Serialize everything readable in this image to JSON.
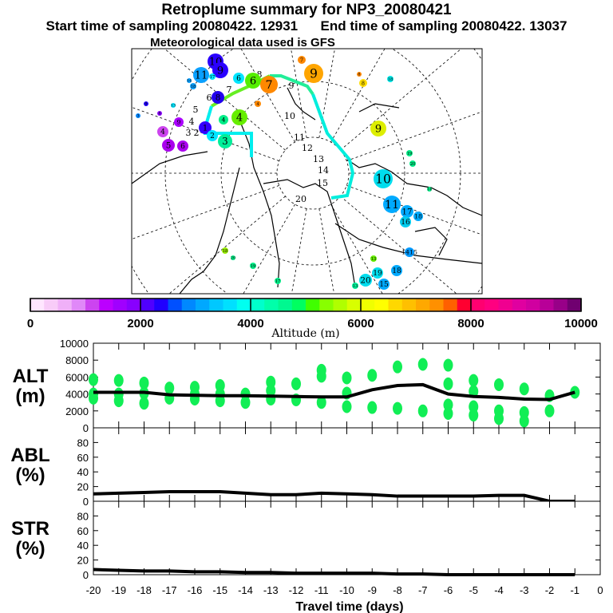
{
  "chart_data": [
    {
      "type": "map",
      "title": "Retroplume summary for NP3_20080421",
      "start_label": "Start time of sampling 20080422. 12931",
      "end_label": "End time of sampling 20080422. 13037",
      "met_label": "Meteorological data used is GFS",
      "trajectory_labels": [
        "20",
        "15",
        "14",
        "13",
        "12",
        "11",
        "10",
        "9",
        "8",
        "7",
        "6",
        "5",
        "4",
        "3",
        "2"
      ],
      "markers": [
        {
          "label": "10",
          "color": "#2a00ff"
        },
        {
          "label": "9",
          "color": "#2a00ff"
        },
        {
          "label": "11",
          "color": "#0aa0ff"
        },
        {
          "label": "17",
          "color": "#00e8ff"
        },
        {
          "label": "14",
          "color": "#0aa0ff"
        },
        {
          "label": "18",
          "color": "#0aa0ff"
        },
        {
          "label": "6",
          "color": "#00e5ff"
        },
        {
          "label": "6",
          "color": "#55ee00"
        },
        {
          "label": "7",
          "color": "#ff8800"
        },
        {
          "label": "7",
          "color": "#ff8800"
        },
        {
          "label": "9",
          "color": "#ffa500"
        },
        {
          "label": "8",
          "color": "#2200ee"
        },
        {
          "label": "4",
          "color": "#ff8800"
        },
        {
          "label": "4",
          "color": "#66ee00"
        },
        {
          "label": "4",
          "color": "#00ee88"
        },
        {
          "label": "1",
          "color": "#3300ff"
        },
        {
          "label": "2",
          "color": "#00e5ff"
        },
        {
          "label": "3",
          "color": "#00ee99"
        },
        {
          "label": "4",
          "color": "#cc44ee"
        },
        {
          "label": "9",
          "color": "#aa00ff"
        },
        {
          "label": "5",
          "color": "#aa00ee"
        },
        {
          "label": "6",
          "color": "#aa00ee"
        },
        {
          "label": "8",
          "color": "#8800ff"
        },
        {
          "label": "9",
          "color": "#2200ff"
        },
        {
          "label": "3",
          "color": "#0088ff"
        },
        {
          "label": "13",
          "color": "#00e5ff"
        },
        {
          "label": "8",
          "color": "#ff8800"
        },
        {
          "label": "8",
          "color": "#ffdd00"
        },
        {
          "label": "18",
          "color": "#00e5e5"
        },
        {
          "label": "9",
          "color": "#ddee00"
        },
        {
          "label": "19",
          "color": "#00ee88"
        },
        {
          "label": "20",
          "color": "#00ee88"
        },
        {
          "label": "10",
          "color": "#00ddee"
        },
        {
          "label": "11",
          "color": "#00aaff"
        },
        {
          "label": "17",
          "color": "#00aaff"
        },
        {
          "label": "16",
          "color": "#00ccee"
        },
        {
          "label": "18",
          "color": "#00aaff"
        },
        {
          "label": "1415",
          "color": "#0099ff"
        },
        {
          "label": "13",
          "color": "#66ee00"
        },
        {
          "label": "19",
          "color": "#00ddee"
        },
        {
          "label": "18",
          "color": "#00aaff"
        },
        {
          "label": "20",
          "color": "#00ddee"
        },
        {
          "label": "15",
          "color": "#00aaff"
        },
        {
          "label": "13",
          "color": "#00ee99"
        },
        {
          "label": "18",
          "color": "#99ee00"
        },
        {
          "label": "20",
          "color": "#00ee88"
        },
        {
          "label": "19",
          "color": "#00ee88"
        },
        {
          "label": "17",
          "color": "#00ee88"
        },
        {
          "label": "14",
          "color": "#00ee88"
        }
      ]
    },
    {
      "type": "colorbar",
      "label": "Altitude (m)",
      "range": [
        0,
        10000
      ],
      "ticks": [
        "0",
        "2000",
        "4000",
        "6000",
        "8000",
        "10000"
      ],
      "colors": [
        "#ffe6ff",
        "#f8ccf8",
        "#f0b0f8",
        "#e088f8",
        "#cc44f0",
        "#bb00ff",
        "#a000ff",
        "#8800ff",
        "#5000ff",
        "#2000ff",
        "#0050ff",
        "#0088ff",
        "#00a8ff",
        "#00c8ff",
        "#00e0ff",
        "#00fff0",
        "#00ffcc",
        "#00ffaa",
        "#00f890",
        "#00ff60",
        "#40ff00",
        "#88ff00",
        "#b0ff00",
        "#d8ff00",
        "#f0ff00",
        "#ffff00",
        "#ffd800",
        "#ffc000",
        "#ffa800",
        "#ff9000",
        "#ff6000",
        "#ff0030",
        "#ff0070",
        "#ff0080",
        "#f00090",
        "#e000a0",
        "#d000a0",
        "#b80098",
        "#980088",
        "#700070"
      ]
    },
    {
      "type": "line",
      "ylabel": "ALT\n(m)",
      "ylabel_lines": [
        "ALT",
        "(m)"
      ],
      "ylim": [
        0,
        10000
      ],
      "yticks": [
        "0",
        "2000",
        "4000",
        "6000",
        "8000",
        "10000"
      ],
      "x": [
        -20,
        -19,
        -18,
        -17,
        -16,
        -15,
        -14,
        -13,
        -12,
        -11,
        -10,
        -9,
        -8,
        -7,
        -6,
        -5,
        -4,
        -3,
        -2,
        -1
      ],
      "values": [
        4200,
        4200,
        4200,
        3900,
        3850,
        3800,
        3800,
        3750,
        3700,
        3650,
        3650,
        4500,
        5000,
        5100,
        4000,
        3700,
        3600,
        3400,
        3350,
        4200
      ],
      "plume_points": [
        [
          -20,
          5700
        ],
        [
          -20,
          4000
        ],
        [
          -20,
          3500
        ],
        [
          -19,
          5600
        ],
        [
          -19,
          4000
        ],
        [
          -19,
          3200
        ],
        [
          -18,
          5300
        ],
        [
          -18,
          4100
        ],
        [
          -18,
          2900
        ],
        [
          -17,
          4700
        ],
        [
          -17,
          3500
        ],
        [
          -16,
          4800
        ],
        [
          -16,
          4000
        ],
        [
          -16,
          3400
        ],
        [
          -15,
          5000
        ],
        [
          -15,
          4000
        ],
        [
          -15,
          3200
        ],
        [
          -14,
          4000
        ],
        [
          -14,
          3000
        ],
        [
          -13,
          5400
        ],
        [
          -13,
          4400
        ],
        [
          -13,
          3400
        ],
        [
          -12,
          5200
        ],
        [
          -12,
          3300
        ],
        [
          -11,
          6800
        ],
        [
          -11,
          6100
        ],
        [
          -11,
          3000
        ],
        [
          -10,
          5900
        ],
        [
          -10,
          4100
        ],
        [
          -10,
          2500
        ],
        [
          -9,
          6200
        ],
        [
          -9,
          2400
        ],
        [
          -8,
          7200
        ],
        [
          -8,
          2300
        ],
        [
          -7,
          7500
        ],
        [
          -7,
          2000
        ],
        [
          -6,
          7400
        ],
        [
          -6,
          5200
        ],
        [
          -6,
          2700
        ],
        [
          -6,
          1700
        ],
        [
          -5,
          5600
        ],
        [
          -5,
          4300
        ],
        [
          -5,
          2500
        ],
        [
          -5,
          1500
        ],
        [
          -4,
          5100
        ],
        [
          -4,
          2000
        ],
        [
          -4,
          1100
        ],
        [
          -3,
          4600
        ],
        [
          -3,
          1800
        ],
        [
          -3,
          800
        ],
        [
          -2,
          3800
        ],
        [
          -2,
          2000
        ],
        [
          -1,
          4200
        ]
      ]
    },
    {
      "type": "line",
      "ylabel_lines": [
        "ABL",
        "(%)"
      ],
      "ylim": [
        0,
        100
      ],
      "yticks": [
        "0",
        "20",
        "40",
        "60",
        "80"
      ],
      "x": [
        -20,
        -19,
        -18,
        -17,
        -16,
        -15,
        -14,
        -13,
        -12,
        -11,
        -10,
        -9,
        -8,
        -7,
        -6,
        -5,
        -4,
        -3,
        -2,
        -1
      ],
      "values": [
        10,
        11,
        12,
        13,
        13,
        13,
        11,
        9,
        9,
        11,
        10,
        9,
        7,
        7,
        7,
        7,
        8,
        8,
        0,
        0
      ]
    },
    {
      "type": "line",
      "ylabel_lines": [
        "STR",
        "(%)"
      ],
      "ylim": [
        0,
        100
      ],
      "yticks": [
        "0",
        "20",
        "40",
        "60",
        "80"
      ],
      "x": [
        -20,
        -19,
        -18,
        -17,
        -16,
        -15,
        -14,
        -13,
        -12,
        -11,
        -10,
        -9,
        -8,
        -7,
        -6,
        -5,
        -4,
        -3,
        -2,
        -1
      ],
      "values": [
        7,
        6,
        5,
        5,
        4,
        4,
        3,
        3,
        2,
        2,
        2,
        2,
        1,
        1,
        0,
        0,
        0,
        0,
        0,
        0
      ],
      "xlabel": "Travel time (days)",
      "xticks": [
        "-20",
        "-19",
        "-18",
        "-17",
        "-16",
        "-15",
        "-14",
        "-13",
        "-12",
        "-11",
        "-10",
        "-9",
        "-8",
        "-7",
        "-6",
        "-5",
        "-4",
        "-3",
        "-2",
        "-1",
        "0"
      ]
    }
  ]
}
